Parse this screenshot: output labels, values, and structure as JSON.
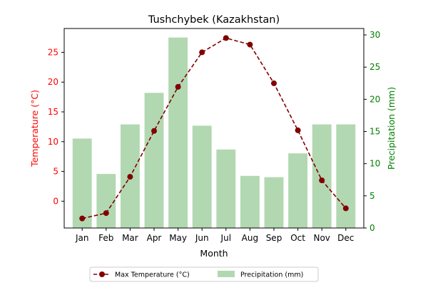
{
  "chart_data": {
    "type": "bar+line",
    "title": "Tushchybek (Kazakhstan)",
    "xlabel": "Month",
    "ylabel_left": "Temperature (°C)",
    "ylabel_right": "Precipitation (mm)",
    "categories": [
      "Jan",
      "Feb",
      "Mar",
      "Apr",
      "May",
      "Jun",
      "Jul",
      "Aug",
      "Sep",
      "Oct",
      "Nov",
      "Dec"
    ],
    "ylim_left": [
      -4.5,
      29
    ],
    "yticks_left": [
      "0",
      "5",
      "10",
      "15",
      "20",
      "25"
    ],
    "ylim_right": [
      0,
      31
    ],
    "yticks_right": [
      "0",
      "5",
      "10",
      "15",
      "20",
      "25",
      "30"
    ],
    "grid": false,
    "legend_placement": "bottom-center",
    "series": [
      {
        "name": "Max Temperature (°C)",
        "kind": "line",
        "axis": "left",
        "color": "#800000",
        "linestyle": "dashed",
        "marker": "circle",
        "values": [
          -2.9,
          -2.0,
          4.1,
          11.8,
          19.2,
          25.0,
          27.4,
          26.3,
          19.8,
          11.9,
          3.5,
          -1.2
        ]
      },
      {
        "name": "Precipitation (mm)",
        "kind": "bar",
        "axis": "right",
        "color": "#b2d8b2",
        "values": [
          13.9,
          8.4,
          16.1,
          21.0,
          29.6,
          15.9,
          12.2,
          8.1,
          7.9,
          11.6,
          16.1,
          16.1
        ]
      }
    ],
    "colors": {
      "left_axis": "#ff0000",
      "right_axis": "#008000"
    }
  }
}
